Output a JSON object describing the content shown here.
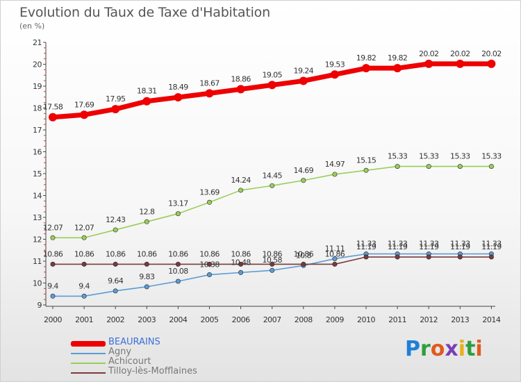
{
  "header": {
    "title": "Evolution du Taux de Taxe d'Habitation",
    "subtitle": "(en %)"
  },
  "logo": {
    "text": "Proxiti",
    "letters": [
      {
        "ch": "P",
        "color": "#1e7fd6"
      },
      {
        "ch": "r",
        "color": "#2e9e3e"
      },
      {
        "ch": "o",
        "color": "#e05a1e"
      },
      {
        "ch": "x",
        "color": "#7a3fb5"
      },
      {
        "ch": "i",
        "color": "#e8b01c"
      },
      {
        "ch": "t",
        "color": "#2e9e3e"
      },
      {
        "ch": "i",
        "color": "#e05a1e"
      }
    ]
  },
  "chart_data": {
    "type": "line",
    "title": "Evolution du Taux de Taxe d'Habitation",
    "subtitle": "(en %)",
    "xlabel": "",
    "ylabel": "",
    "x": [
      "2000",
      "2001",
      "2002",
      "2003",
      "2004",
      "2005",
      "2006",
      "2007",
      "2008",
      "2009",
      "2010",
      "2011",
      "2012",
      "2013",
      "2014"
    ],
    "ylim": [
      9,
      21
    ],
    "yticks": [
      "9",
      "10",
      "11",
      "12",
      "13",
      "14",
      "15",
      "16",
      "17",
      "18",
      "19",
      "20",
      "21"
    ],
    "grid": false,
    "legend_position": "bottom-left",
    "series": [
      {
        "name": "BEAURAINS",
        "color": "#ee0000",
        "emphasis": true,
        "values": [
          17.58,
          17.69,
          17.95,
          18.31,
          18.49,
          18.67,
          18.86,
          19.05,
          19.24,
          19.53,
          19.82,
          19.82,
          20.02,
          20.02,
          20.02
        ],
        "labels": [
          "17.58",
          "17.69",
          "17.95",
          "18.31",
          "18.49",
          "18.67",
          "18.86",
          "19.05",
          "19.24",
          "19.53",
          "19.82",
          "19.82",
          "20.02",
          "20.02",
          "20.02"
        ]
      },
      {
        "name": "Agny",
        "color": "#5b9bd5",
        "emphasis": false,
        "values": [
          9.4,
          9.4,
          9.64,
          9.83,
          10.08,
          10.38,
          10.48,
          10.58,
          10.8,
          11.11,
          11.33,
          11.33,
          11.33,
          11.33,
          11.33
        ],
        "labels": [
          "9.4",
          "9.4",
          "9.64",
          "9.83",
          "10.08",
          "10.38",
          "10.48",
          "10.58",
          "10.8",
          "11.11",
          "11.33",
          "11.33",
          "11.33",
          "11.33",
          "11.33"
        ]
      },
      {
        "name": "Achicourt",
        "color": "#9acd5a",
        "emphasis": false,
        "values": [
          12.07,
          12.07,
          12.43,
          12.8,
          13.17,
          13.69,
          14.24,
          14.45,
          14.69,
          14.97,
          15.15,
          15.33,
          15.33,
          15.33,
          15.33
        ],
        "labels": [
          "12.07",
          "12.07",
          "12.43",
          "12.8",
          "13.17",
          "13.69",
          "14.24",
          "14.45",
          "14.69",
          "14.97",
          "15.15",
          "15.33",
          "15.33",
          "15.33",
          "15.33"
        ]
      },
      {
        "name": "Tilloy-lès-Mofflaines",
        "color": "#7a3a3a",
        "emphasis": false,
        "values": [
          10.86,
          10.86,
          10.86,
          10.86,
          10.86,
          10.86,
          10.86,
          10.86,
          10.86,
          10.86,
          11.19,
          11.19,
          11.19,
          11.19,
          11.19
        ],
        "labels": [
          "10.86",
          "10.86",
          "10.86",
          "10.86",
          "10.86",
          "10.86",
          "10.86",
          "10.86",
          "10.86",
          "10.86",
          "11.19",
          "11.19",
          "11.19",
          "11.19",
          "11.19"
        ]
      }
    ]
  }
}
